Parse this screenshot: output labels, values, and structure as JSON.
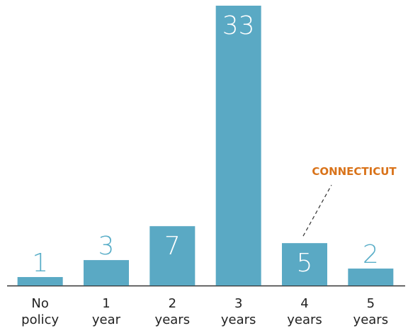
{
  "chart_data": {
    "type": "bar",
    "categories": [
      "No policy",
      "1 year",
      "2 years",
      "3 years",
      "4 years",
      "5 years"
    ],
    "values": [
      1,
      3,
      7,
      33,
      5,
      2
    ],
    "color": "#5aa9c4",
    "annotations": [
      {
        "text": "CONNECTICUT",
        "category": "4 years",
        "color": "#d9731a"
      }
    ]
  }
}
